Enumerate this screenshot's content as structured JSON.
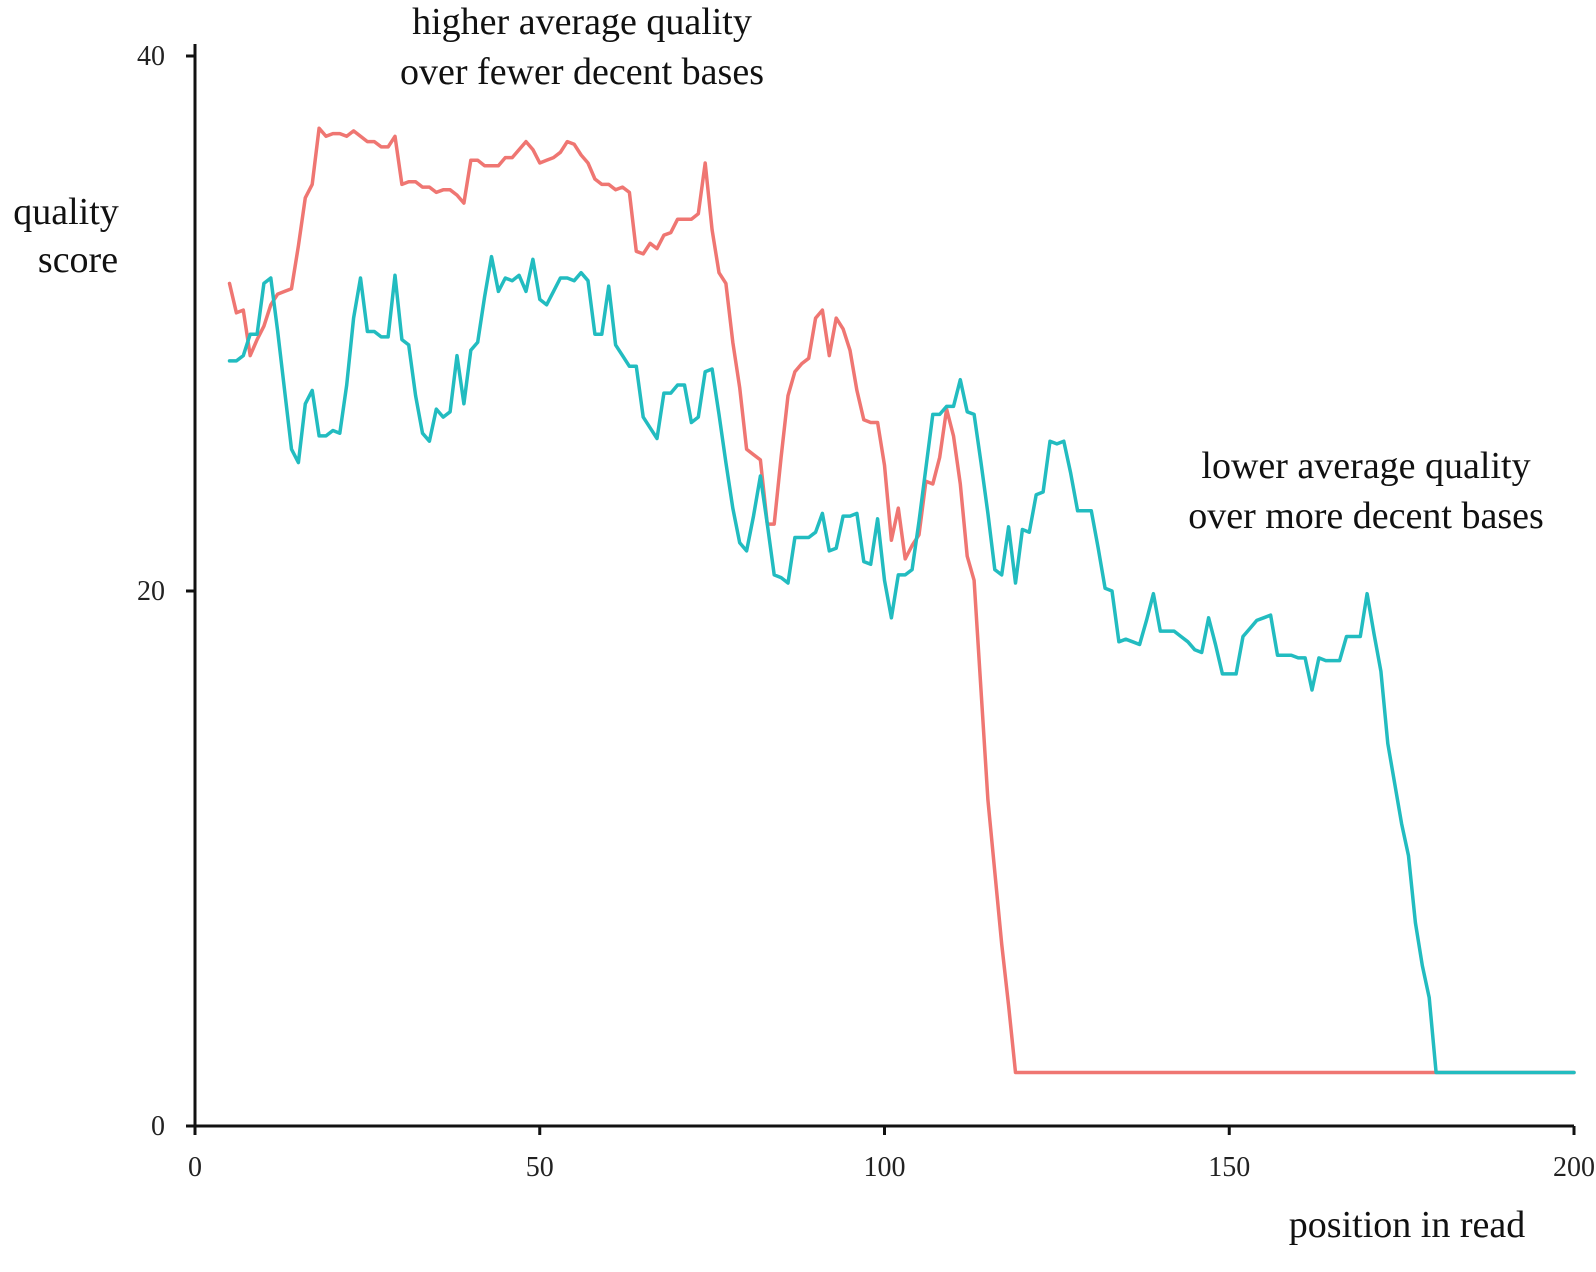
{
  "chart_data": {
    "type": "line",
    "title": "",
    "xlabel": "position in read",
    "ylabel_lines": [
      "quality",
      "score"
    ],
    "xlim": [
      0,
      200
    ],
    "ylim": [
      0,
      40
    ],
    "x_ticks": [
      0,
      50,
      100,
      150,
      200
    ],
    "y_ticks": [
      0,
      20,
      40
    ],
    "grid": false,
    "legend": "none",
    "annotations": [
      {
        "lines": [
          "higher average quality",
          "over fewer decent bases"
        ],
        "color": "#111111"
      },
      {
        "lines": [
          "lower average quality",
          "over more decent bases"
        ],
        "color": "#111111"
      }
    ],
    "series": [
      {
        "color": "#ef7672",
        "points": [
          [
            5,
            31.5
          ],
          [
            6,
            30.4
          ],
          [
            7,
            30.5
          ],
          [
            8,
            28.8
          ],
          [
            9,
            29.4
          ],
          [
            10,
            29.9
          ],
          [
            11,
            30.7
          ],
          [
            12,
            31.1
          ],
          [
            13,
            31.2
          ],
          [
            14,
            31.3
          ],
          [
            15,
            32.9
          ],
          [
            16,
            34.7
          ],
          [
            17,
            35.2
          ],
          [
            18,
            37.3
          ],
          [
            19,
            37.0
          ],
          [
            20,
            37.1
          ],
          [
            21,
            37.1
          ],
          [
            22,
            37.0
          ],
          [
            23,
            37.2
          ],
          [
            24,
            37.0
          ],
          [
            25,
            36.8
          ],
          [
            26,
            36.8
          ],
          [
            27,
            36.6
          ],
          [
            28,
            36.6
          ],
          [
            29,
            37.0
          ],
          [
            30,
            35.2
          ],
          [
            31,
            35.3
          ],
          [
            32,
            35.3
          ],
          [
            33,
            35.1
          ],
          [
            34,
            35.1
          ],
          [
            35,
            34.9
          ],
          [
            36,
            35.0
          ],
          [
            37,
            35.0
          ],
          [
            38,
            34.8
          ],
          [
            39,
            34.5
          ],
          [
            40,
            36.1
          ],
          [
            41,
            36.1
          ],
          [
            42,
            35.9
          ],
          [
            43,
            35.9
          ],
          [
            44,
            35.9
          ],
          [
            45,
            36.2
          ],
          [
            46,
            36.2
          ],
          [
            47,
            36.5
          ],
          [
            48,
            36.8
          ],
          [
            49,
            36.5
          ],
          [
            50,
            36.0
          ],
          [
            51,
            36.1
          ],
          [
            52,
            36.2
          ],
          [
            53,
            36.4
          ],
          [
            54,
            36.8
          ],
          [
            55,
            36.7
          ],
          [
            56,
            36.3
          ],
          [
            57,
            36.0
          ],
          [
            58,
            35.4
          ],
          [
            59,
            35.2
          ],
          [
            60,
            35.2
          ],
          [
            61,
            35.0
          ],
          [
            62,
            35.1
          ],
          [
            63,
            34.9
          ],
          [
            64,
            32.7
          ],
          [
            65,
            32.6
          ],
          [
            66,
            33.0
          ],
          [
            67,
            32.8
          ],
          [
            68,
            33.3
          ],
          [
            69,
            33.4
          ],
          [
            70,
            33.9
          ],
          [
            71,
            33.9
          ],
          [
            72,
            33.9
          ],
          [
            73,
            34.1
          ],
          [
            74,
            36.0
          ],
          [
            75,
            33.5
          ],
          [
            76,
            31.9
          ],
          [
            77,
            31.5
          ],
          [
            78,
            29.3
          ],
          [
            79,
            27.6
          ],
          [
            80,
            25.3
          ],
          [
            81,
            25.1
          ],
          [
            82,
            24.9
          ],
          [
            83,
            22.5
          ],
          [
            84,
            22.5
          ],
          [
            85,
            25.0
          ],
          [
            86,
            27.3
          ],
          [
            87,
            28.2
          ],
          [
            88,
            28.5
          ],
          [
            89,
            28.7
          ],
          [
            90,
            30.2
          ],
          [
            91,
            30.5
          ],
          [
            92,
            28.8
          ],
          [
            93,
            30.2
          ],
          [
            94,
            29.8
          ],
          [
            95,
            29.0
          ],
          [
            96,
            27.5
          ],
          [
            97,
            26.4
          ],
          [
            98,
            26.3
          ],
          [
            99,
            26.3
          ],
          [
            100,
            24.7
          ],
          [
            101,
            21.9
          ],
          [
            102,
            23.1
          ],
          [
            103,
            21.2
          ],
          [
            104,
            21.7
          ],
          [
            105,
            22.1
          ],
          [
            106,
            24.1
          ],
          [
            107,
            24.0
          ],
          [
            108,
            25.0
          ],
          [
            109,
            26.8
          ],
          [
            110,
            25.8
          ],
          [
            111,
            24.0
          ],
          [
            112,
            21.3
          ],
          [
            113,
            20.4
          ],
          [
            114,
            16.3
          ],
          [
            115,
            12.2
          ],
          [
            116,
            9.5
          ],
          [
            117,
            6.8
          ],
          [
            118,
            4.5
          ],
          [
            119,
            2.0
          ],
          [
            120,
            2.0
          ],
          [
            200,
            2.0
          ]
        ]
      },
      {
        "color": "#22bcc0",
        "points": [
          [
            5,
            28.6
          ],
          [
            6,
            28.6
          ],
          [
            7,
            28.8
          ],
          [
            8,
            29.6
          ],
          [
            9,
            29.6
          ],
          [
            10,
            31.5
          ],
          [
            11,
            31.7
          ],
          [
            12,
            29.7
          ],
          [
            13,
            27.5
          ],
          [
            14,
            25.3
          ],
          [
            15,
            24.8
          ],
          [
            16,
            27.0
          ],
          [
            17,
            27.5
          ],
          [
            18,
            25.8
          ],
          [
            19,
            25.8
          ],
          [
            20,
            26.0
          ],
          [
            21,
            25.9
          ],
          [
            22,
            27.7
          ],
          [
            23,
            30.2
          ],
          [
            24,
            31.7
          ],
          [
            25,
            29.7
          ],
          [
            26,
            29.7
          ],
          [
            27,
            29.5
          ],
          [
            28,
            29.5
          ],
          [
            29,
            31.8
          ],
          [
            30,
            29.4
          ],
          [
            31,
            29.2
          ],
          [
            32,
            27.3
          ],
          [
            33,
            25.9
          ],
          [
            34,
            25.6
          ],
          [
            35,
            26.8
          ],
          [
            36,
            26.5
          ],
          [
            37,
            26.7
          ],
          [
            38,
            28.8
          ],
          [
            39,
            27.0
          ],
          [
            40,
            29.0
          ],
          [
            41,
            29.3
          ],
          [
            42,
            31.0
          ],
          [
            43,
            32.5
          ],
          [
            44,
            31.2
          ],
          [
            45,
            31.7
          ],
          [
            46,
            31.6
          ],
          [
            47,
            31.8
          ],
          [
            48,
            31.2
          ],
          [
            49,
            32.4
          ],
          [
            50,
            30.9
          ],
          [
            51,
            30.7
          ],
          [
            52,
            31.2
          ],
          [
            53,
            31.7
          ],
          [
            54,
            31.7
          ],
          [
            55,
            31.6
          ],
          [
            56,
            31.9
          ],
          [
            57,
            31.6
          ],
          [
            58,
            29.6
          ],
          [
            59,
            29.6
          ],
          [
            60,
            31.4
          ],
          [
            61,
            29.2
          ],
          [
            62,
            28.8
          ],
          [
            63,
            28.4
          ],
          [
            64,
            28.4
          ],
          [
            65,
            26.5
          ],
          [
            66,
            26.1
          ],
          [
            67,
            25.7
          ],
          [
            68,
            27.4
          ],
          [
            69,
            27.4
          ],
          [
            70,
            27.7
          ],
          [
            71,
            27.7
          ],
          [
            72,
            26.3
          ],
          [
            73,
            26.5
          ],
          [
            74,
            28.2
          ],
          [
            75,
            28.3
          ],
          [
            76,
            26.6
          ],
          [
            77,
            24.8
          ],
          [
            78,
            23.1
          ],
          [
            79,
            21.8
          ],
          [
            80,
            21.5
          ],
          [
            81,
            22.8
          ],
          [
            82,
            24.3
          ],
          [
            83,
            22.5
          ],
          [
            84,
            20.6
          ],
          [
            85,
            20.5
          ],
          [
            86,
            20.3
          ],
          [
            87,
            22.0
          ],
          [
            88,
            22.0
          ],
          [
            89,
            22.0
          ],
          [
            90,
            22.2
          ],
          [
            91,
            22.9
          ],
          [
            92,
            21.5
          ],
          [
            93,
            21.6
          ],
          [
            94,
            22.8
          ],
          [
            95,
            22.8
          ],
          [
            96,
            22.9
          ],
          [
            97,
            21.1
          ],
          [
            98,
            21.0
          ],
          [
            99,
            22.7
          ],
          [
            100,
            20.4
          ],
          [
            101,
            19.0
          ],
          [
            102,
            20.6
          ],
          [
            103,
            20.6
          ],
          [
            104,
            20.8
          ],
          [
            105,
            22.6
          ],
          [
            106,
            24.6
          ],
          [
            107,
            26.6
          ],
          [
            108,
            26.6
          ],
          [
            109,
            26.9
          ],
          [
            110,
            26.9
          ],
          [
            111,
            27.9
          ],
          [
            112,
            26.7
          ],
          [
            113,
            26.6
          ],
          [
            114,
            24.8
          ],
          [
            115,
            22.9
          ],
          [
            116,
            20.8
          ],
          [
            117,
            20.6
          ],
          [
            118,
            22.4
          ],
          [
            119,
            20.3
          ],
          [
            120,
            22.3
          ],
          [
            121,
            22.2
          ],
          [
            122,
            23.6
          ],
          [
            123,
            23.7
          ],
          [
            124,
            25.6
          ],
          [
            125,
            25.5
          ],
          [
            126,
            25.6
          ],
          [
            127,
            24.4
          ],
          [
            128,
            23.0
          ],
          [
            129,
            23.0
          ],
          [
            130,
            23.0
          ],
          [
            131,
            21.6
          ],
          [
            132,
            20.1
          ],
          [
            133,
            20.0
          ],
          [
            134,
            18.1
          ],
          [
            135,
            18.2
          ],
          [
            136,
            18.1
          ],
          [
            137,
            18.0
          ],
          [
            138,
            18.9
          ],
          [
            139,
            19.9
          ],
          [
            140,
            18.5
          ],
          [
            141,
            18.5
          ],
          [
            142,
            18.5
          ],
          [
            143,
            18.3
          ],
          [
            144,
            18.1
          ],
          [
            145,
            17.8
          ],
          [
            146,
            17.7
          ],
          [
            147,
            19.0
          ],
          [
            148,
            18.0
          ],
          [
            149,
            16.9
          ],
          [
            150,
            16.9
          ],
          [
            151,
            16.9
          ],
          [
            152,
            18.3
          ],
          [
            153,
            18.6
          ],
          [
            154,
            18.9
          ],
          [
            155,
            19.0
          ],
          [
            156,
            19.1
          ],
          [
            157,
            17.6
          ],
          [
            158,
            17.6
          ],
          [
            159,
            17.6
          ],
          [
            160,
            17.5
          ],
          [
            161,
            17.5
          ],
          [
            162,
            16.3
          ],
          [
            163,
            17.5
          ],
          [
            164,
            17.4
          ],
          [
            165,
            17.4
          ],
          [
            166,
            17.4
          ],
          [
            167,
            18.3
          ],
          [
            168,
            18.3
          ],
          [
            169,
            18.3
          ],
          [
            170,
            19.9
          ],
          [
            171,
            18.4
          ],
          [
            172,
            17.0
          ],
          [
            173,
            14.3
          ],
          [
            174,
            12.8
          ],
          [
            175,
            11.3
          ],
          [
            176,
            10.1
          ],
          [
            177,
            7.6
          ],
          [
            178,
            6.0
          ],
          [
            179,
            4.8
          ],
          [
            180,
            2.0
          ],
          [
            200,
            2.0
          ]
        ]
      }
    ]
  }
}
